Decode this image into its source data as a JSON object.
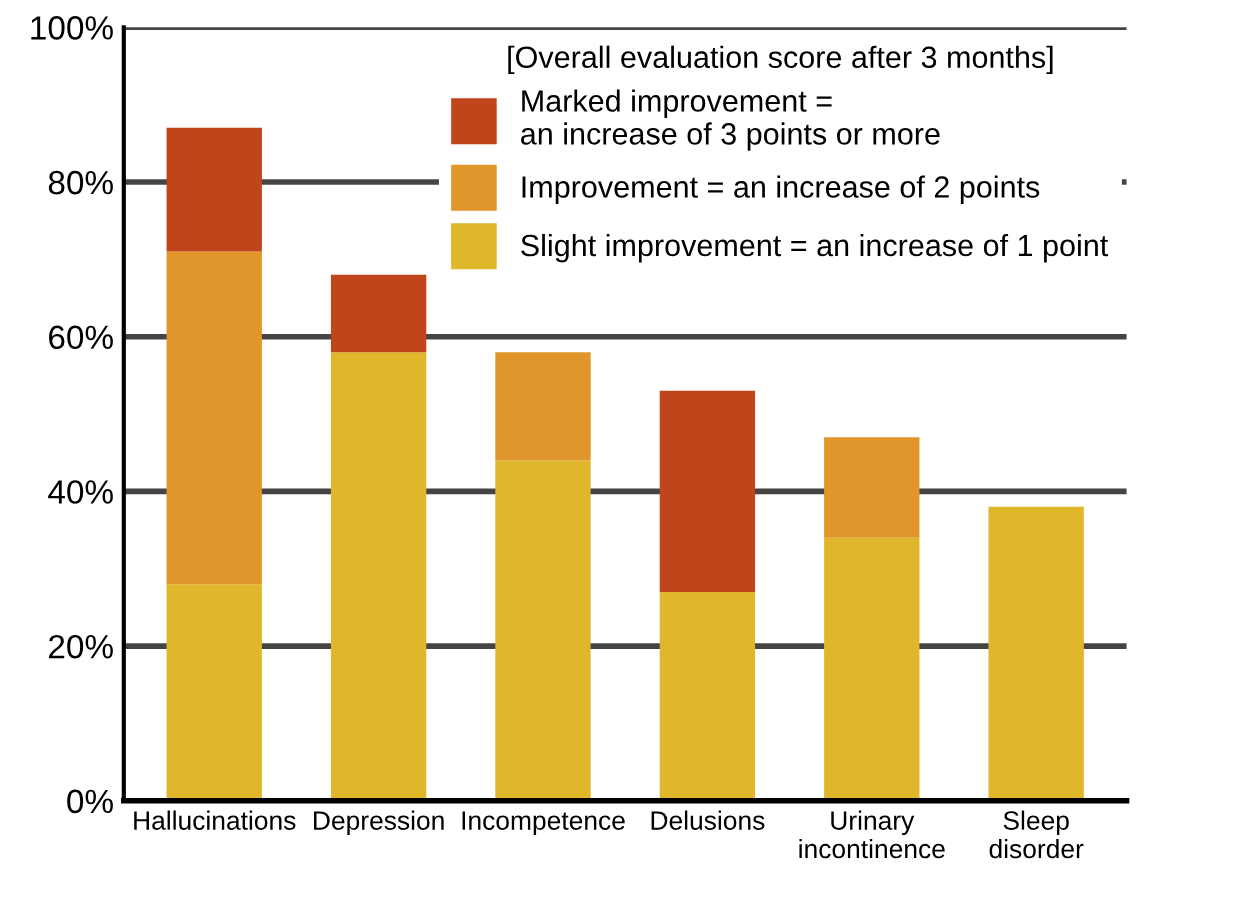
{
  "chart_data": {
    "type": "bar",
    "stacked": true,
    "categories": [
      "Hallucinations",
      "Depression",
      "Incompetence",
      "Delusions",
      "Urinary\nincontinence",
      "Sleep\ndisorder"
    ],
    "series": [
      {
        "name": "Slight improvement = an increase of 1 point",
        "color": "#e0b72a",
        "values": [
          28,
          58,
          44,
          27,
          34,
          38
        ]
      },
      {
        "name": "Improvement = an increase of 2 points",
        "color": "#e0962a",
        "values": [
          43,
          0,
          14,
          0,
          13,
          0
        ]
      },
      {
        "name": "Marked improvement =\nan increase of 3 points or more",
        "color": "#c0451a",
        "values": [
          16,
          10,
          0,
          26,
          0,
          0
        ]
      }
    ],
    "legend_title": "[Overall evaluation score after 3 months]",
    "legend": "top right",
    "ylim": [
      0,
      100
    ],
    "yticks": [
      {
        "value": 0,
        "label": "0%"
      },
      {
        "value": 20,
        "label": "20%"
      },
      {
        "value": 40,
        "label": "40%"
      },
      {
        "value": 60,
        "label": "60%"
      },
      {
        "value": 80,
        "label": "80%"
      },
      {
        "value": 100,
        "label": "100%"
      }
    ],
    "grid": "y"
  }
}
